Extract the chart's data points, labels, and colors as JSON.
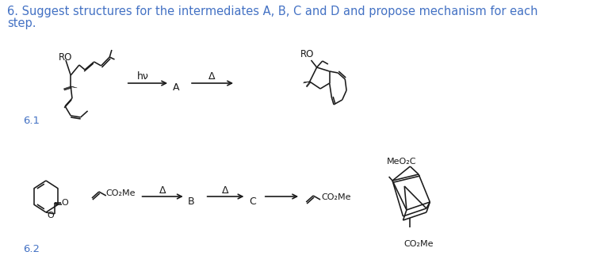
{
  "title_line1": "6. Suggest structures for the intermediates A, B, C and D and propose mechanism for each",
  "title_line2": "step.",
  "title_color": "#4472c4",
  "title_fontsize": 10.5,
  "label_61": "6.1",
  "label_62": "6.2",
  "label_color": "#4472c4",
  "bg_color": "#ffffff",
  "sc": "#1a1a1a",
  "lw": 1.15
}
